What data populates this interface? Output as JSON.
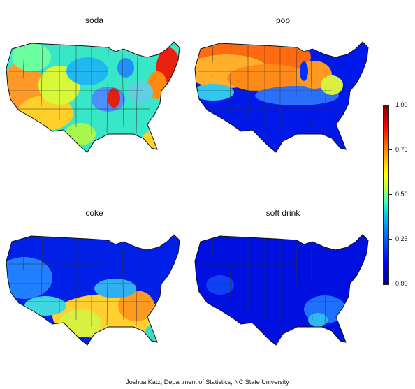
{
  "panels": [
    {
      "title": "soda"
    },
    {
      "title": "pop"
    },
    {
      "title": "coke"
    },
    {
      "title": "soft drink"
    }
  ],
  "colorbar": {
    "ticks": [
      "1.00",
      "0.75",
      "0.50",
      "0.25",
      "0.00"
    ],
    "colors": [
      "#00008f",
      "#0000ff",
      "#0080ff",
      "#00d8e8",
      "#c8ff38",
      "#ffff00",
      "#ff8000",
      "#ff0000",
      "#800000"
    ]
  },
  "credit": "Joshua Katz, Department of Statistics, NC State University"
}
